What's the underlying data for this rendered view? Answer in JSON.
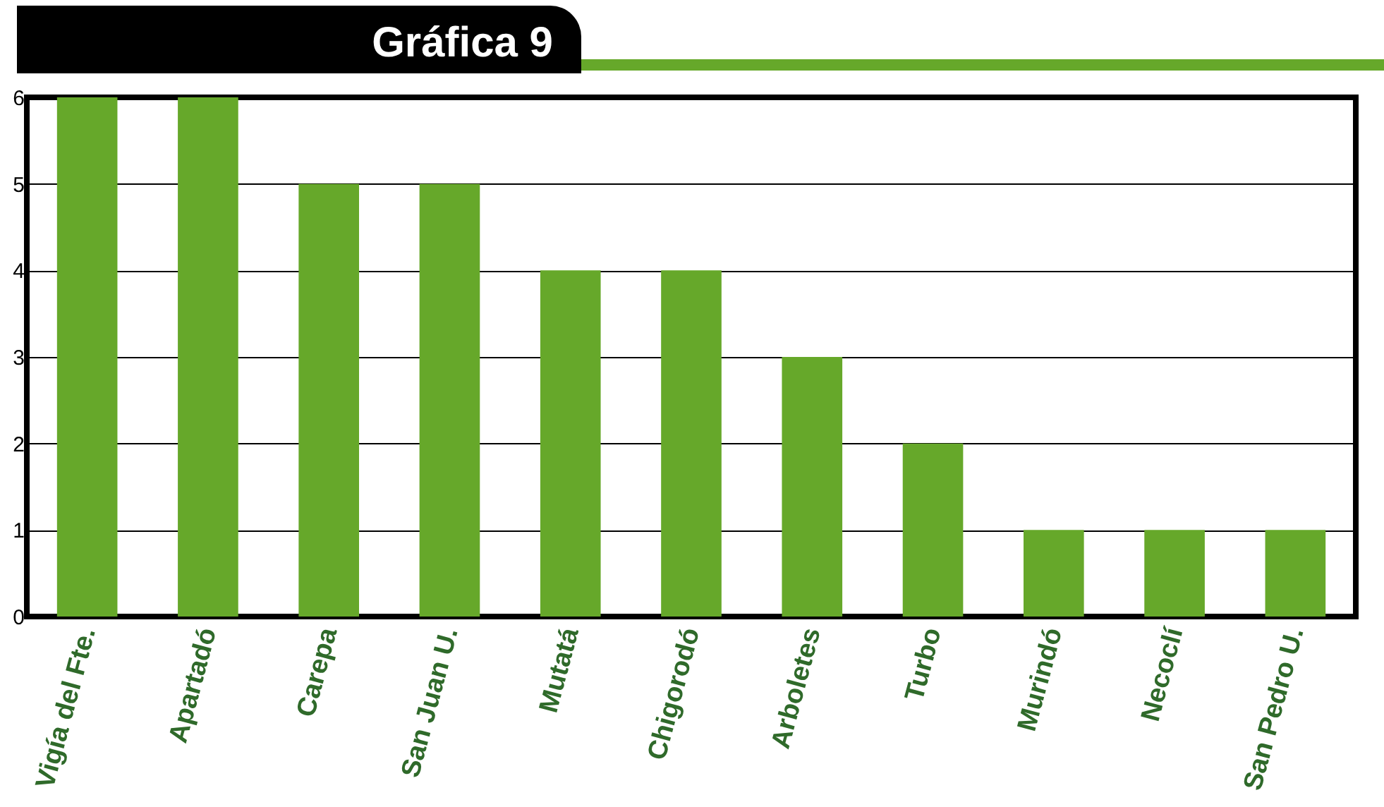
{
  "chart_data": {
    "type": "bar",
    "title": "Gráfica 9",
    "categories": [
      "Vigía del Fte.",
      "Apartadó",
      "Carepa",
      "San Juan U.",
      "Mutatá",
      "Chigorodó",
      "Arboletes",
      "Turbo",
      "Murindó",
      "Necoclí",
      "San Pedro U."
    ],
    "values": [
      6,
      6,
      5,
      5,
      4,
      4,
      3,
      2,
      1,
      1,
      1
    ],
    "color": "#66a82a",
    "ylim": [
      0,
      6
    ],
    "yticks": [
      0,
      1,
      2,
      3,
      4,
      5,
      6
    ],
    "grid": "y"
  }
}
